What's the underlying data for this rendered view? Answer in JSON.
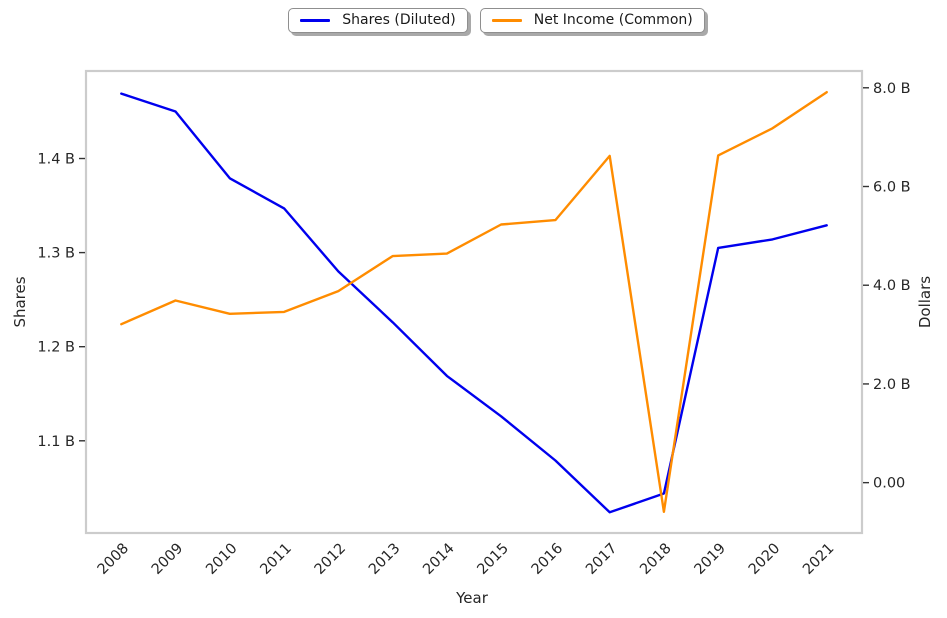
{
  "figure": {
    "xlabel": "Year",
    "ylabel_left": "Shares",
    "ylabel_right": "Dollars"
  },
  "legend": [
    {
      "label": "Shares (Diluted)",
      "color": "#0000ee"
    },
    {
      "label": "Net Income (Common)",
      "color": "#ff8c00"
    }
  ],
  "chart_data": {
    "type": "line",
    "title": "",
    "xlabel": "Year",
    "x": [
      "2008",
      "2009",
      "2010",
      "2011",
      "2012",
      "2013",
      "2014",
      "2015",
      "2016",
      "2017",
      "2018",
      "2019",
      "2020",
      "2021"
    ],
    "xlim": [
      -0.65,
      13.65
    ],
    "grid": false,
    "legend_position": "upper center, outside plot, two boxes",
    "left_axis": {
      "label": "Shares",
      "unit": "B",
      "lim": [
        1.002,
        1.493
      ],
      "ticks": [
        {
          "value": 1.1,
          "label": "1.1 B"
        },
        {
          "value": 1.2,
          "label": "1.2 B"
        },
        {
          "value": 1.3,
          "label": "1.3 B"
        },
        {
          "value": 1.4,
          "label": "1.4 B"
        }
      ]
    },
    "right_axis": {
      "label": "Dollars",
      "unit": "B",
      "lim": [
        -1.02,
        8.34
      ],
      "ticks": [
        {
          "value": 0,
          "label": "0.00"
        },
        {
          "value": 2,
          "label": "2.0 B"
        },
        {
          "value": 4,
          "label": "4.0 B"
        },
        {
          "value": 6,
          "label": "6.0 B"
        },
        {
          "value": 8,
          "label": "8.0 B"
        }
      ]
    },
    "series": [
      {
        "name": "Shares (Diluted)",
        "axis": "left",
        "color": "#0000ee",
        "unit": "B",
        "values": [
          1.469,
          1.45,
          1.379,
          1.347,
          1.28,
          1.226,
          1.169,
          1.126,
          1.079,
          1.024,
          1.044,
          1.305,
          1.314,
          1.329
        ]
      },
      {
        "name": "Net Income (Common)",
        "axis": "right",
        "color": "#ff8c00",
        "unit": "B",
        "values": [
          3.21,
          3.69,
          3.42,
          3.46,
          3.88,
          4.59,
          4.64,
          5.23,
          5.32,
          6.62,
          -0.59,
          6.63,
          7.18,
          7.91
        ]
      }
    ],
    "colors": {
      "spine": "#cccccc",
      "tick": "#333333",
      "text": "#262626",
      "background": "#ffffff"
    }
  }
}
